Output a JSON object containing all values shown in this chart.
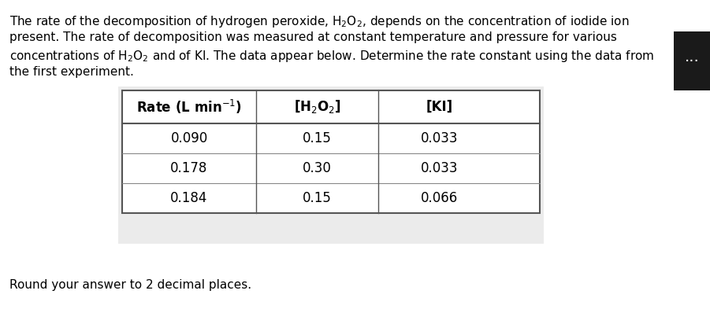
{
  "paragraph": "The rate of the decomposition of hydrogen peroxide, H₂O₂, depends on the concentration of iodide ion present. The rate of decomposition was measured at constant temperature and pressure for various concentrations of H₂O₂ and of KI. The data appear below. Determine the rate constant using the data from the first experiment.",
  "footer": "Round your answer to 2 decimal places.",
  "col_headers": [
    "Rate (L min⁻¹)",
    "[H₂O₂]",
    "[KI]"
  ],
  "rows": [
    [
      "0.090",
      "0.15",
      "0.033"
    ],
    [
      "0.178",
      "0.30",
      "0.033"
    ],
    [
      "0.184",
      "0.15",
      "0.066"
    ]
  ],
  "bg_color": "#ffffff",
  "table_bg": "#f0f0f0",
  "dark_button_color": "#1a1a1a",
  "text_color": "#000000",
  "font_size_para": 11,
  "font_size_table": 12,
  "font_size_footer": 11
}
